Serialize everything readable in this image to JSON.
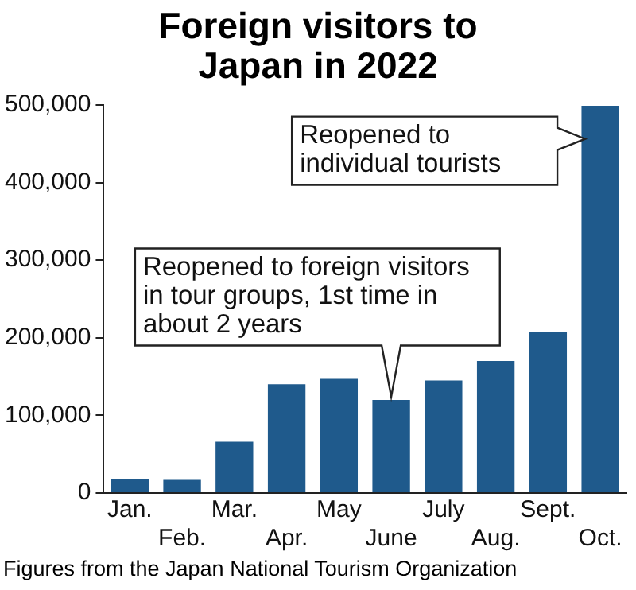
{
  "chart_data": {
    "type": "bar",
    "title": "Foreign visitors to Japan in 2022",
    "categories": [
      "Jan.",
      "Feb.",
      "Mar.",
      "Apr.",
      "May",
      "June",
      "July",
      "Aug.",
      "Sept.",
      "Oct."
    ],
    "values": [
      18000,
      17000,
      66000,
      140000,
      147000,
      120000,
      145000,
      170000,
      207000,
      499000
    ],
    "color": "#1f5a8c",
    "ylim": [
      0,
      500000
    ],
    "yticks": [
      0,
      {
        "value": 100000,
        "label": "100,000"
      },
      {
        "value": 200000,
        "label": "200,000"
      },
      {
        "value": 300000,
        "label": "300,000"
      },
      {
        "value": 400000,
        "label": "400,000"
      },
      {
        "value": 500000,
        "label": "500,000"
      }
    ],
    "grid": false,
    "legend": false,
    "annotations": [
      {
        "text": "Reopened to foreign visitors in tour groups, 1st time in about 2 years",
        "x": "June",
        "y": 120000
      },
      "Reopened to individual tourists",
      "Figures from the Japan National Tourism Organization"
    ]
  }
}
